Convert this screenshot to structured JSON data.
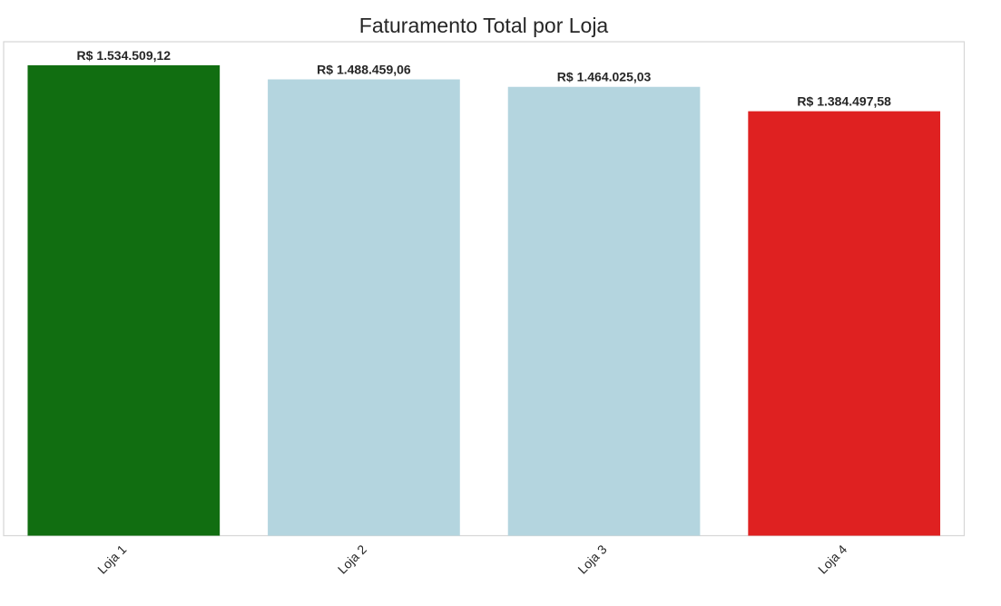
{
  "chart_data": {
    "type": "bar",
    "title": "Faturamento Total por Loja",
    "xlabel": "",
    "ylabel": "",
    "categories": [
      "Loja 1",
      "Loja 2",
      "Loja 3",
      "Loja 4"
    ],
    "values": [
      1534509.12,
      1488459.06,
      1464025.03,
      1384497.58
    ],
    "value_labels": [
      "R$ 1.534.509,12",
      "R$ 1.488.459,06",
      "R$ 1.464.025,03",
      "R$ 1.384.497,58"
    ],
    "colors": [
      "#116e11",
      "#b4d5df",
      "#b4d5df",
      "#df2121"
    ],
    "ylim": [
      0,
      1611234.58
    ],
    "grid": false,
    "legend": "none",
    "y_ticks_shown": false,
    "x_tick_rotation_deg": 45
  },
  "style": {
    "frame_color": "#d6d6d6",
    "text_color": "#262626",
    "background": "#ffffff"
  }
}
